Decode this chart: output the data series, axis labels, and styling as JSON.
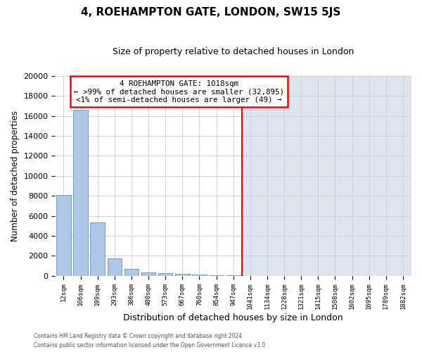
{
  "title1": "4, ROEHAMPTON GATE, LONDON, SW15 5JS",
  "title2": "Size of property relative to detached houses in London",
  "xlabel": "Distribution of detached houses by size in London",
  "ylabel": "Number of detached properties",
  "bar_labels": [
    "12sqm",
    "106sqm",
    "199sqm",
    "293sqm",
    "386sqm",
    "480sqm",
    "573sqm",
    "667sqm",
    "760sqm",
    "854sqm",
    "947sqm",
    "1041sqm",
    "1134sqm",
    "1228sqm",
    "1321sqm",
    "1415sqm",
    "1508sqm",
    "1602sqm",
    "1695sqm",
    "1789sqm",
    "1882sqm"
  ],
  "bar_values": [
    8100,
    16600,
    5350,
    1750,
    700,
    330,
    220,
    170,
    110,
    50,
    20,
    0,
    0,
    0,
    0,
    0,
    0,
    0,
    0,
    0,
    0
  ],
  "bar_color": "#aec6e8",
  "bar_edgecolor": "#5a8fc2",
  "vline_idx": 11,
  "vline_color": "red",
  "annotation_title": "4 ROEHAMPTON GATE: 1018sqm",
  "annotation_line1": "← >99% of detached houses are smaller (32,895)",
  "annotation_line2": "<1% of semi-detached houses are larger (49) →",
  "annotation_box_color": "red",
  "ylim": [
    0,
    20000
  ],
  "yticks": [
    0,
    2000,
    4000,
    6000,
    8000,
    10000,
    12000,
    14000,
    16000,
    18000,
    20000
  ],
  "right_bg_color": "#dde6f0",
  "left_bg_color": "#ffffff",
  "grid_color": "#cccccc",
  "footer1": "Contains HM Land Registry data © Crown copyright and database right 2024.",
  "footer2": "Contains public sector information licensed under the Open Government Licence v3.0."
}
